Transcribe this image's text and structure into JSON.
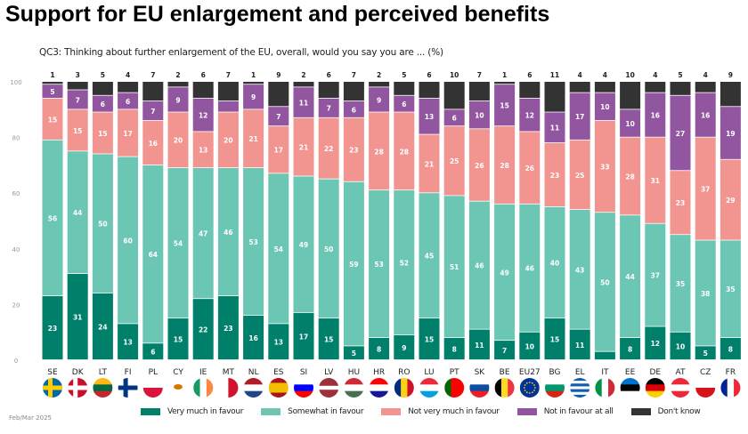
{
  "title": "Support for EU enlargement and perceived benefits",
  "subtitle": "QC3: Thinking about further enlargement of the EU, overall, would you say you are ... (%)",
  "footer": "Feb/Mar 2025",
  "chart_data": {
    "type": "bar",
    "stacked": true,
    "orientation": "vertical",
    "ylim": [
      0,
      100
    ],
    "yticks": [
      "0",
      "20",
      "40",
      "60",
      "80",
      "100"
    ],
    "grid": false,
    "legend_position": "bottom",
    "categories": [
      "SE",
      "DK",
      "LT",
      "FI",
      "PL",
      "CY",
      "IE",
      "MT",
      "NL",
      "ES",
      "SI",
      "LV",
      "HU",
      "HR",
      "RO",
      "LU",
      "PT",
      "SK",
      "BE",
      "EU27",
      "BG",
      "EL",
      "IT",
      "EE",
      "DE",
      "AT",
      "CZ",
      "FR"
    ],
    "series": [
      {
        "name": "Very much in favour",
        "color": "#00806a",
        "values": [
          23,
          31,
          24,
          13,
          6,
          15,
          22,
          23,
          16,
          13,
          17,
          15,
          5,
          8,
          9,
          15,
          8,
          11,
          7,
          10,
          15,
          11,
          3,
          8,
          12,
          10,
          5,
          8
        ]
      },
      {
        "name": "Somewhat in favour",
        "color": "#6bc6b3",
        "values": [
          56,
          44,
          50,
          60,
          64,
          54,
          47,
          46,
          53,
          54,
          49,
          50,
          59,
          53,
          52,
          45,
          51,
          46,
          49,
          46,
          40,
          43,
          50,
          44,
          37,
          35,
          38,
          35
        ]
      },
      {
        "name": "Not very much in favour",
        "color": "#f29591",
        "values": [
          15,
          15,
          15,
          17,
          16,
          20,
          13,
          20,
          21,
          17,
          21,
          22,
          23,
          28,
          28,
          21,
          25,
          26,
          28,
          26,
          23,
          25,
          33,
          28,
          31,
          23,
          37,
          29
        ]
      },
      {
        "name": "Not in favour at all",
        "color": "#9256a0",
        "values": [
          5,
          7,
          6,
          6,
          7,
          9,
          12,
          4,
          9,
          7,
          11,
          7,
          6,
          9,
          6,
          13,
          6,
          10,
          15,
          12,
          11,
          17,
          10,
          10,
          16,
          27,
          16,
          19
        ]
      },
      {
        "name": "Don't know",
        "color": "#333333",
        "values": [
          1,
          3,
          5,
          4,
          7,
          2,
          6,
          7,
          1,
          9,
          2,
          6,
          7,
          2,
          5,
          6,
          10,
          7,
          1,
          6,
          11,
          4,
          4,
          10,
          4,
          5,
          4,
          9
        ]
      }
    ]
  },
  "flags": [
    {
      "type": "nordic",
      "colors": [
        "#006aa7",
        "#fecc00"
      ]
    },
    {
      "type": "nordic",
      "colors": [
        "#c8102e",
        "#ffffff"
      ]
    },
    {
      "type": "h",
      "colors": [
        "#fdb913",
        "#006a44",
        "#c1272d"
      ]
    },
    {
      "type": "nordic",
      "colors": [
        "#ffffff",
        "#003580"
      ]
    },
    {
      "type": "h",
      "colors": [
        "#ffffff",
        "#dc143c"
      ]
    },
    {
      "type": "solid",
      "colors": [
        "#ffffff",
        "#d57800"
      ]
    },
    {
      "type": "v",
      "colors": [
        "#169b62",
        "#ffffff",
        "#ff883e"
      ]
    },
    {
      "type": "v",
      "colors": [
        "#ffffff",
        "#cf142b"
      ]
    },
    {
      "type": "h",
      "colors": [
        "#ae1c28",
        "#ffffff",
        "#21468b"
      ]
    },
    {
      "type": "h",
      "colors": [
        "#aa151b",
        "#f1bf00",
        "#f1bf00",
        "#aa151b"
      ]
    },
    {
      "type": "h",
      "colors": [
        "#ffffff",
        "#0000ff",
        "#ff0000"
      ]
    },
    {
      "type": "h",
      "colors": [
        "#9e3039",
        "#9e3039",
        "#ffffff",
        "#9e3039",
        "#9e3039"
      ]
    },
    {
      "type": "h",
      "colors": [
        "#ce2939",
        "#ffffff",
        "#477050"
      ]
    },
    {
      "type": "h",
      "colors": [
        "#ff0000",
        "#ffffff",
        "#171796"
      ]
    },
    {
      "type": "v",
      "colors": [
        "#002b7f",
        "#fcd116",
        "#ce1126"
      ]
    },
    {
      "type": "h",
      "colors": [
        "#ed2939",
        "#ffffff",
        "#00a1de"
      ]
    },
    {
      "type": "v",
      "colors": [
        "#006600",
        "#ff0000",
        "#ff0000"
      ]
    },
    {
      "type": "h",
      "colors": [
        "#ffffff",
        "#0b4ea2",
        "#ee1c25"
      ]
    },
    {
      "type": "v",
      "colors": [
        "#000000",
        "#fdda24",
        "#ef3340"
      ]
    },
    {
      "type": "eu",
      "colors": [
        "#003399",
        "#ffcc00"
      ]
    },
    {
      "type": "h",
      "colors": [
        "#ffffff",
        "#00966e",
        "#d62612"
      ]
    },
    {
      "type": "h",
      "colors": [
        "#0d5eaf",
        "#ffffff",
        "#0d5eaf",
        "#ffffff",
        "#0d5eaf",
        "#ffffff",
        "#0d5eaf"
      ]
    },
    {
      "type": "v",
      "colors": [
        "#009246",
        "#ffffff",
        "#ce2b37"
      ]
    },
    {
      "type": "h",
      "colors": [
        "#0072ce",
        "#000000",
        "#ffffff"
      ]
    },
    {
      "type": "h",
      "colors": [
        "#000000",
        "#dd0000",
        "#ffce00"
      ]
    },
    {
      "type": "h",
      "colors": [
        "#ed2939",
        "#ffffff",
        "#ed2939"
      ]
    },
    {
      "type": "h",
      "colors": [
        "#ffffff",
        "#d7141a"
      ]
    },
    {
      "type": "v",
      "colors": [
        "#002395",
        "#ffffff",
        "#ed2939"
      ]
    }
  ]
}
